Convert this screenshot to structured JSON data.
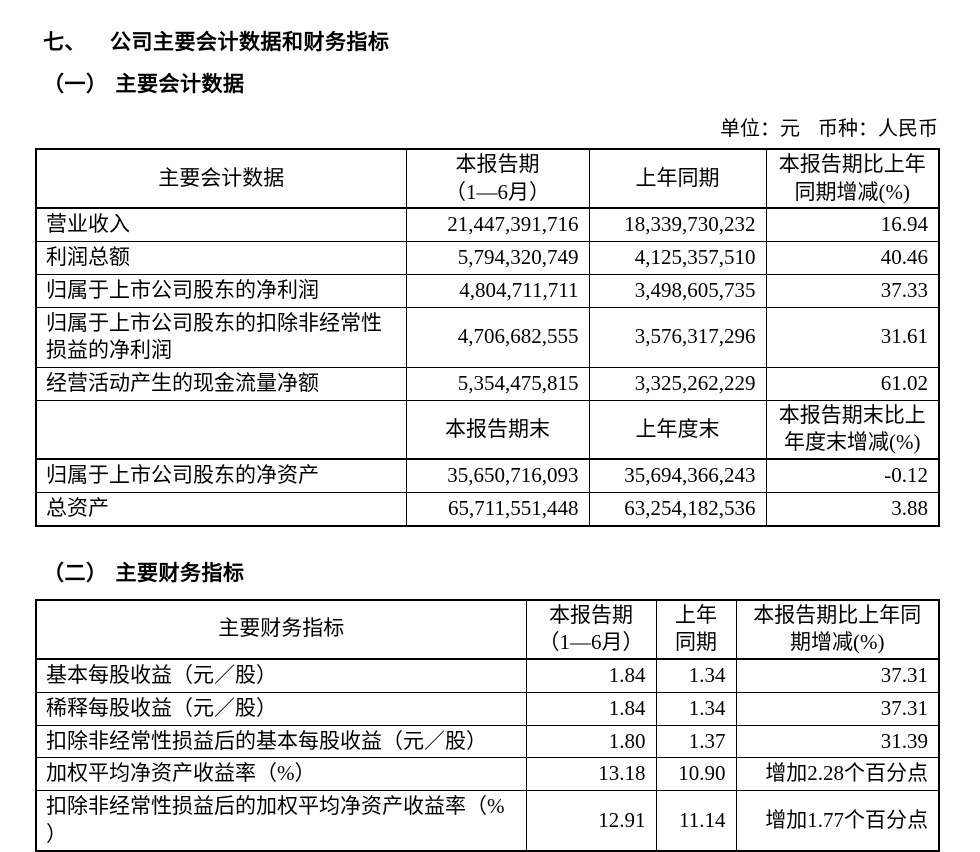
{
  "page": {
    "section_num": "七、",
    "section_title": "公司主要会计数据和财务指标",
    "sub1_num": "（一）",
    "sub1_title": "主要会计数据",
    "unit_label": "单位：元",
    "currency_label": "币种：人民币",
    "sub2_num": "（二）",
    "sub2_title": "主要财务指标"
  },
  "accounting_table": {
    "columns": [
      "主要会计数据",
      "本报告期\n（1—6月）",
      "上年同期",
      "本报告期比上年\n同期增减(%)"
    ],
    "rows": [
      [
        "营业收入",
        "21,447,391,716",
        "18,339,730,232",
        "16.94"
      ],
      [
        "利润总额",
        "5,794,320,749",
        "4,125,357,510",
        "40.46"
      ],
      [
        "归属于上市公司股东的净利润",
        "4,804,711,711",
        "3,498,605,735",
        "37.33"
      ],
      [
        "归属于上市公司股东的扣除非经常性\n损益的净利润",
        "4,706,682,555",
        "3,576,317,296",
        "31.61"
      ],
      [
        "经营活动产生的现金流量净额",
        "5,354,475,815",
        "3,325,262,229",
        "61.02"
      ]
    ],
    "subheader": [
      "",
      "本报告期末",
      "上年度末",
      "本报告期末比上\n年度末增减(%)"
    ],
    "rows2": [
      [
        "归属于上市公司股东的净资产",
        "35,650,716,093",
        "35,694,366,243",
        "-0.12"
      ],
      [
        "总资产",
        "65,711,551,448",
        "63,254,182,536",
        "3.88"
      ]
    ]
  },
  "financial_table": {
    "columns": [
      "主要财务指标",
      "本报告期\n（1—6月）",
      "上年\n同期",
      "本报告期比上年同\n期增减(%)"
    ],
    "rows": [
      [
        "基本每股收益（元／股）",
        "1.84",
        "1.34",
        "37.31"
      ],
      [
        "稀释每股收益（元／股）",
        "1.84",
        "1.34",
        "37.31"
      ],
      [
        "扣除非经常性损益后的基本每股收益（元／股）",
        "1.80",
        "1.37",
        "31.39"
      ],
      [
        "加权平均净资产收益率（%）",
        "13.18",
        "10.90",
        "增加2.28个百分点"
      ],
      [
        "扣除非经常性损益后的加权平均净资产收益率（%\n）",
        "12.91",
        "11.14",
        "增加1.77个百分点"
      ]
    ]
  }
}
